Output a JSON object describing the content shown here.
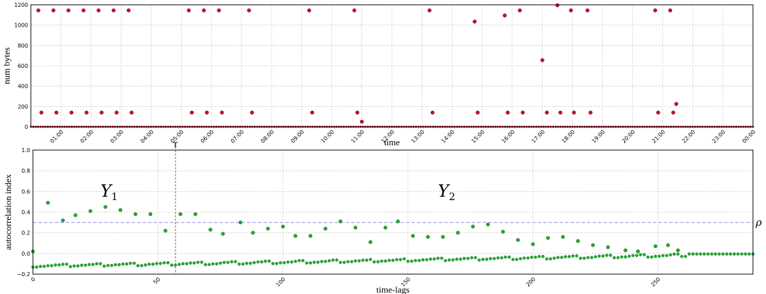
{
  "chart_data": [
    {
      "type": "scatter",
      "title": "",
      "xlabel": "time",
      "ylabel": "num bytes",
      "xlim": [
        0,
        24
      ],
      "ylim": [
        0,
        1200
      ],
      "x_ticks": [
        1,
        2,
        3,
        4,
        5,
        6,
        7,
        8,
        9,
        10,
        11,
        12,
        13,
        14,
        15,
        16,
        17,
        18,
        19,
        20,
        21,
        22,
        23,
        24
      ],
      "x_tick_labels": [
        "01:00",
        "02:00",
        "03:00",
        "04:00",
        "05:00",
        "06:00",
        "07:00",
        "08:00",
        "09:00",
        "10:00",
        "11:00",
        "12:00",
        "13:00",
        "14:00",
        "15:00",
        "16:00",
        "17:00",
        "18:00",
        "19:00",
        "20:00",
        "21:00",
        "22:00",
        "23:00",
        "00:00"
      ],
      "y_ticks": [
        0,
        200,
        400,
        600,
        800,
        1000,
        1200
      ],
      "grid": true,
      "marker_color": "#c8102e",
      "series": [
        {
          "x": [
            0.25,
            0.35,
            0.75,
            0.85,
            1.25,
            1.35,
            1.75,
            1.85,
            2.25,
            2.35,
            2.75,
            2.85,
            3.25,
            3.35,
            5.25,
            5.35,
            5.75,
            5.85,
            6.25,
            6.35,
            7.25,
            7.35,
            9.25,
            9.35,
            10.75,
            10.85,
            11.0,
            13.25,
            13.35,
            14.75,
            14.85,
            15.75,
            15.85,
            16.25,
            16.35,
            17.0,
            17.15,
            17.5,
            17.6,
            17.95,
            18.05,
            18.5,
            18.6,
            20.75,
            20.85,
            21.25,
            21.35,
            21.45
          ],
          "y": [
            1145,
            140,
            1145,
            140,
            1145,
            140,
            1145,
            140,
            1145,
            140,
            1145,
            140,
            1145,
            140,
            1145,
            140,
            1145,
            140,
            1145,
            140,
            1145,
            140,
            1145,
            140,
            1145,
            140,
            50,
            1145,
            140,
            1035,
            140,
            1095,
            140,
            1145,
            140,
            655,
            140,
            1195,
            140,
            1145,
            140,
            1145,
            140,
            1145,
            140,
            1145,
            140,
            225
          ]
        }
      ],
      "baseline_value": 0
    },
    {
      "type": "scatter",
      "title": "",
      "xlabel": "time-lags",
      "ylabel": "autocorrelation index",
      "xlim": [
        0,
        288
      ],
      "ylim": [
        -0.2,
        1.0
      ],
      "x_ticks": [
        0,
        50,
        100,
        150,
        200,
        250
      ],
      "y_ticks": [
        -0.2,
        0.0,
        0.2,
        0.4,
        0.6,
        0.8,
        1.0
      ],
      "y_tick_labels": [
        "−0.2",
        "0.0",
        "0.2",
        "0.4",
        "0.6",
        "0.8",
        "1.0"
      ],
      "grid": true,
      "marker_color": "#22aa33",
      "threshold": {
        "label": "ρ",
        "value": 0.3,
        "color": "#a9a9f2"
      },
      "split": {
        "label": "τ",
        "lag": 57,
        "color": "#e07b20"
      },
      "annotations": [
        {
          "text": "Y",
          "sub": "1",
          "x": 27,
          "y": 0.55
        },
        {
          "text": "Y",
          "sub": "2",
          "x": 162,
          "y": 0.55
        }
      ],
      "series": [
        {
          "peaks_x": [
            0,
            6,
            12,
            17,
            23,
            29,
            35,
            41,
            47,
            53,
            59,
            65,
            71,
            76,
            83,
            88,
            94,
            100,
            105,
            111,
            117,
            123,
            129,
            135,
            141,
            146,
            152,
            158,
            164,
            170,
            176,
            182,
            188,
            194,
            200,
            206,
            212,
            218,
            224,
            230,
            237,
            242,
            249,
            254,
            258
          ],
          "peaks_y": [
            0.02,
            0.49,
            0.32,
            0.37,
            0.41,
            0.45,
            0.42,
            0.38,
            0.38,
            0.22,
            0.38,
            0.38,
            0.23,
            0.19,
            0.3,
            0.2,
            0.24,
            0.26,
            0.17,
            0.17,
            0.24,
            0.31,
            0.25,
            0.11,
            0.25,
            0.31,
            0.17,
            0.16,
            0.16,
            0.2,
            0.26,
            0.28,
            0.21,
            0.13,
            0.09,
            0.15,
            0.16,
            0.12,
            0.08,
            0.06,
            0.03,
            0.02,
            0.07,
            0.08,
            0.03
          ],
          "baseline_start": -0.12,
          "baseline_end": -0.005,
          "baseline_x_end": 288
        }
      ]
    }
  ]
}
